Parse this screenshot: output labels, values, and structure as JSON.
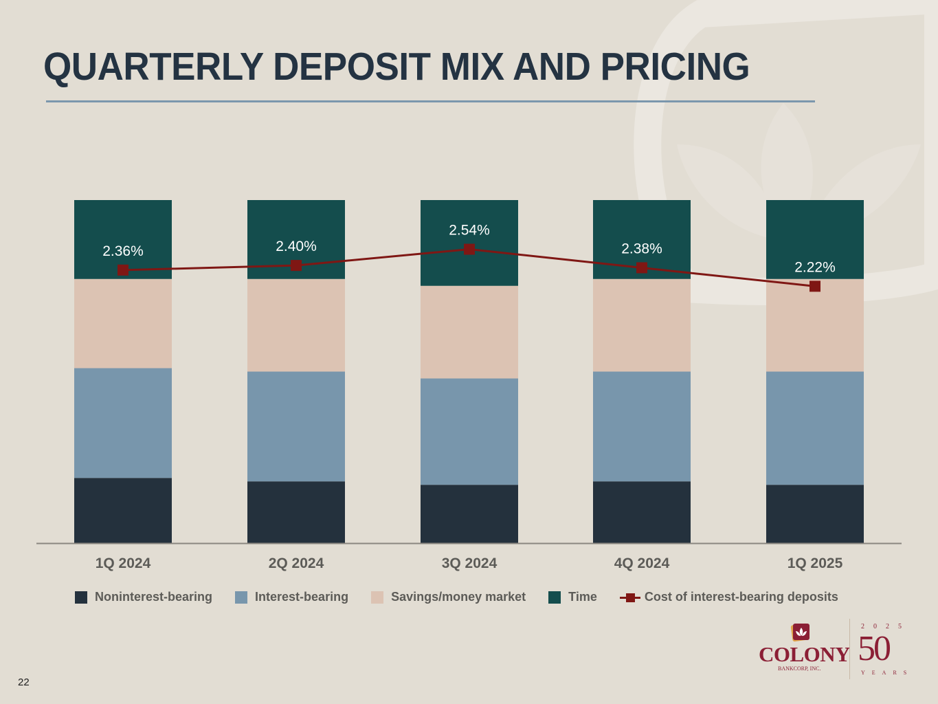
{
  "slide": {
    "title": "QUARTERLY DEPOSIT MIX AND PRICING",
    "page_number": "22"
  },
  "logo": {
    "brand": "COLONY",
    "sub": "BANKCORP, INC.",
    "anniversary_year": "2025",
    "anniversary_number": "50",
    "anniversary_word": "YEARS"
  },
  "colors": {
    "background": "#e2ddd3",
    "title": "#243342",
    "rule": "#7b97ad",
    "noninterest": "#24313d",
    "interest": "#7896ac",
    "savings": "#dcc3b3",
    "time": "#144d4d",
    "cost_line": "#7f1714"
  },
  "chart_data": {
    "type": "bar",
    "stacked": true,
    "percent_stacked": true,
    "title": "QUARTERLY DEPOSIT MIX AND PRICING",
    "categories": [
      "1Q 2024",
      "2Q 2024",
      "3Q 2024",
      "4Q 2024",
      "1Q 2025"
    ],
    "ylim": [
      0,
      100
    ],
    "y_unit": "% of total deposits (estimated)",
    "y_axis_visible": false,
    "grid": false,
    "series": [
      {
        "name": "Noninterest-bearing",
        "color_key": "noninterest",
        "values": [
          19,
          18,
          17,
          18,
          17
        ]
      },
      {
        "name": "Interest-bearing",
        "color_key": "interest",
        "values": [
          32,
          32,
          31,
          32,
          33
        ]
      },
      {
        "name": "Savings/money market",
        "color_key": "savings",
        "values": [
          26,
          27,
          27,
          27,
          27
        ]
      },
      {
        "name": "Time",
        "color_key": "time",
        "values": [
          23,
          23,
          25,
          23,
          23
        ]
      }
    ],
    "line_series": {
      "name": "Cost of interest-bearing deposits",
      "color_key": "cost_line",
      "type": "line",
      "marker": "square",
      "values": [
        2.36,
        2.4,
        2.54,
        2.38,
        2.22
      ],
      "labels": [
        "2.36%",
        "2.40%",
        "2.54%",
        "2.38%",
        "2.22%"
      ],
      "secondary_ylim": [
        0.0,
        4.1
      ]
    },
    "legend": {
      "position": "bottom",
      "entries": [
        "Noninterest-bearing",
        "Interest-bearing",
        "Savings/money market",
        "Time",
        "Cost of interest-bearing deposits"
      ]
    },
    "xlabel": "",
    "ylabel": ""
  }
}
